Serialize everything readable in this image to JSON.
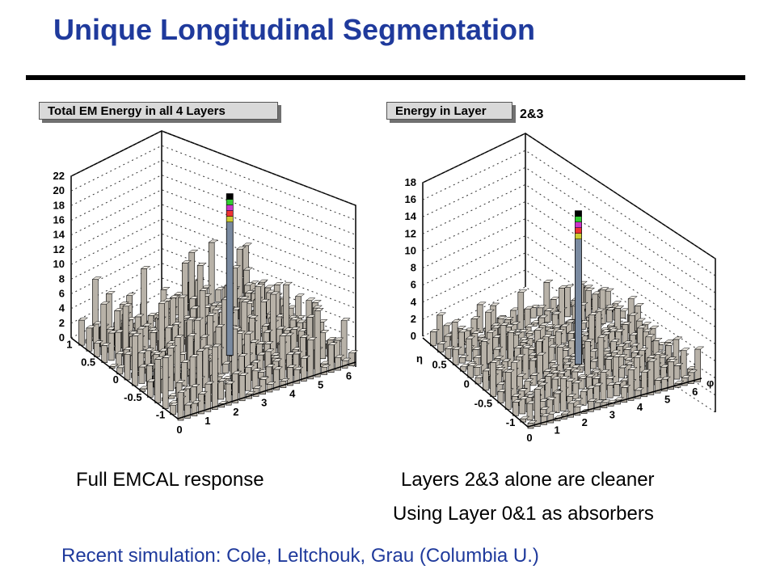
{
  "slide": {
    "title": "Unique Longitudinal Segmentation",
    "left_caption": "Full EMCAL response",
    "right_caption_1": "Layers 2&3 alone are cleaner",
    "right_caption_2": "Using Layer 0&1 as absorbers",
    "credit": "Recent simulation: Cole, Leltchouk, Grau (Columbia U.)",
    "colors": {
      "title": "#1f3a9c",
      "credit": "#1f3a9c",
      "rule": "#000000"
    }
  },
  "chart_data": [
    {
      "type": "lego3d",
      "title": "Total EM Energy in all 4 Layers",
      "z_ticks": [
        "0",
        "2",
        "4",
        "6",
        "8",
        "10",
        "12",
        "14",
        "16",
        "18",
        "20",
        "22"
      ],
      "zlim": [
        0,
        22
      ],
      "y_ticks": [
        "-1",
        "-0.5",
        "0",
        "0.5",
        "1"
      ],
      "x_ticks": [
        "0",
        "1",
        "2",
        "3",
        "4",
        "5",
        "6"
      ],
      "axis_symbols": [],
      "grid": true,
      "peak": {
        "x": 3.3,
        "y": -0.2,
        "value": 22
      },
      "background_level": 6
    },
    {
      "type": "lego3d",
      "title": "Energy in Layer",
      "title_suffix": "2&3",
      "z_ticks": [
        "0",
        "2",
        "4",
        "6",
        "8",
        "10",
        "12",
        "14",
        "16",
        "18"
      ],
      "zlim": [
        0,
        18
      ],
      "y_ticks": [
        "-1",
        "-0.5",
        "0",
        "0.5"
      ],
      "x_ticks": [
        "0",
        "1",
        "2",
        "3",
        "4",
        "5",
        "6"
      ],
      "axis_symbols": [
        "η",
        "φ"
      ],
      "grid": true,
      "peak": {
        "x": 3.3,
        "y": -0.2,
        "value": 18
      },
      "background_level": 3
    }
  ]
}
